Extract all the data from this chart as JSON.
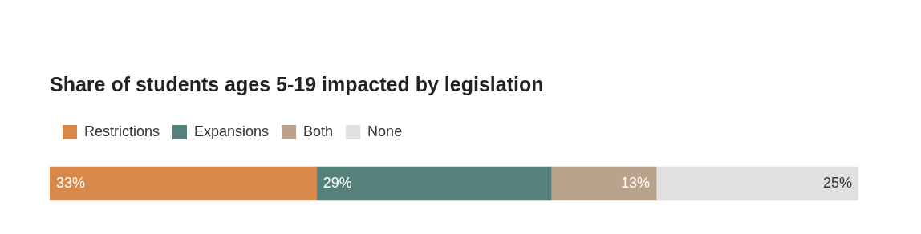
{
  "chart_data": {
    "type": "bar",
    "title": "Share of students ages 5-19 impacted by legislation",
    "orientation": "horizontal",
    "stacked": true,
    "categories": [
      null
    ],
    "xlim": [
      0,
      100
    ],
    "legend": "top left",
    "series": [
      {
        "name": "Restrictions",
        "color": "#d9884c",
        "values": [
          33
        ],
        "value_labels": [
          "33%"
        ]
      },
      {
        "name": "Expansions",
        "color": "#56807a",
        "values": [
          29
        ],
        "value_labels": [
          "29%"
        ]
      },
      {
        "name": "Both",
        "color": "#bba28d",
        "values": [
          13
        ],
        "value_labels": [
          "13%"
        ]
      },
      {
        "name": "None",
        "color": "#e0e0e0",
        "values": [
          25
        ],
        "value_labels": [
          "25%"
        ]
      }
    ]
  }
}
